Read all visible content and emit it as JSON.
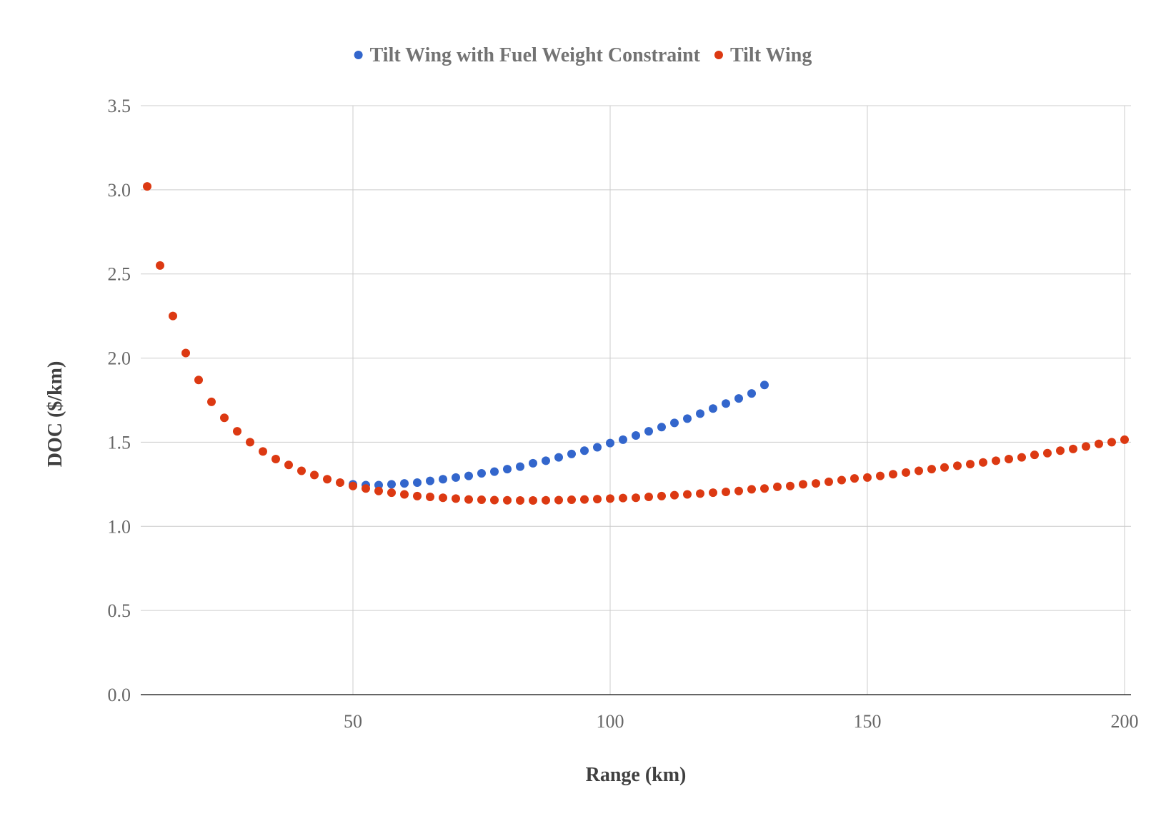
{
  "chart_data": {
    "type": "scatter",
    "title": "",
    "xlabel": "Range (km)",
    "ylabel": "DOC ($/km)",
    "xlim": [
      8.75,
      201.25
    ],
    "ylim": [
      0,
      3.5
    ],
    "xticks": [
      50,
      100,
      150,
      200
    ],
    "yticks": [
      0,
      0.5,
      1,
      1.5,
      2,
      2.5,
      3,
      3.5
    ],
    "xtick_labels": [
      "50",
      "100",
      "150",
      "200"
    ],
    "ytick_labels": [
      "0.0",
      "0.5",
      "1.0",
      "1.5",
      "2.0",
      "2.5",
      "3.0",
      "3.5"
    ],
    "grid": true,
    "legend_position": "top",
    "series": [
      {
        "name": "Tilt Wing with Fuel Weight Constraint",
        "color": "#3366cc",
        "x": [
          50,
          52.5,
          55,
          57.5,
          60,
          62.5,
          65,
          67.5,
          70,
          72.5,
          75,
          77.5,
          80,
          82.5,
          85,
          87.5,
          90,
          92.5,
          95,
          97.5,
          100,
          102.5,
          105,
          107.5,
          110,
          112.5,
          115,
          117.5,
          120,
          122.5,
          125,
          127.5,
          130
        ],
        "y": [
          1.25,
          1.245,
          1.245,
          1.25,
          1.255,
          1.26,
          1.27,
          1.28,
          1.29,
          1.3,
          1.315,
          1.325,
          1.34,
          1.355,
          1.375,
          1.39,
          1.41,
          1.43,
          1.45,
          1.47,
          1.495,
          1.515,
          1.54,
          1.565,
          1.59,
          1.615,
          1.64,
          1.67,
          1.7,
          1.73,
          1.76,
          1.79,
          1.84
        ]
      },
      {
        "name": "Tilt Wing",
        "color": "#dc3912",
        "x": [
          10,
          12.5,
          15,
          17.5,
          20,
          22.5,
          25,
          27.5,
          30,
          32.5,
          35,
          37.5,
          40,
          42.5,
          45,
          47.5,
          50,
          52.5,
          55,
          57.5,
          60,
          62.5,
          65,
          67.5,
          70,
          72.5,
          75,
          77.5,
          80,
          82.5,
          85,
          87.5,
          90,
          92.5,
          95,
          97.5,
          100,
          102.5,
          105,
          107.5,
          110,
          112.5,
          115,
          117.5,
          120,
          122.5,
          125,
          127.5,
          130,
          132.5,
          135,
          137.5,
          140,
          142.5,
          145,
          147.5,
          150,
          152.5,
          155,
          157.5,
          160,
          162.5,
          165,
          167.5,
          170,
          172.5,
          175,
          177.5,
          180,
          182.5,
          185,
          187.5,
          190,
          192.5,
          195,
          197.5,
          200
        ],
        "y": [
          3.02,
          2.55,
          2.25,
          2.03,
          1.87,
          1.74,
          1.645,
          1.565,
          1.5,
          1.445,
          1.4,
          1.365,
          1.33,
          1.305,
          1.28,
          1.26,
          1.24,
          1.225,
          1.21,
          1.2,
          1.19,
          1.18,
          1.175,
          1.17,
          1.165,
          1.16,
          1.158,
          1.156,
          1.155,
          1.154,
          1.154,
          1.155,
          1.156,
          1.158,
          1.16,
          1.162,
          1.165,
          1.168,
          1.17,
          1.175,
          1.18,
          1.185,
          1.19,
          1.195,
          1.2,
          1.205,
          1.21,
          1.22,
          1.225,
          1.235,
          1.24,
          1.25,
          1.255,
          1.265,
          1.275,
          1.285,
          1.29,
          1.3,
          1.31,
          1.32,
          1.33,
          1.34,
          1.35,
          1.36,
          1.37,
          1.38,
          1.39,
          1.4,
          1.41,
          1.425,
          1.435,
          1.45,
          1.46,
          1.475,
          1.49,
          1.5,
          1.515
        ]
      }
    ]
  }
}
